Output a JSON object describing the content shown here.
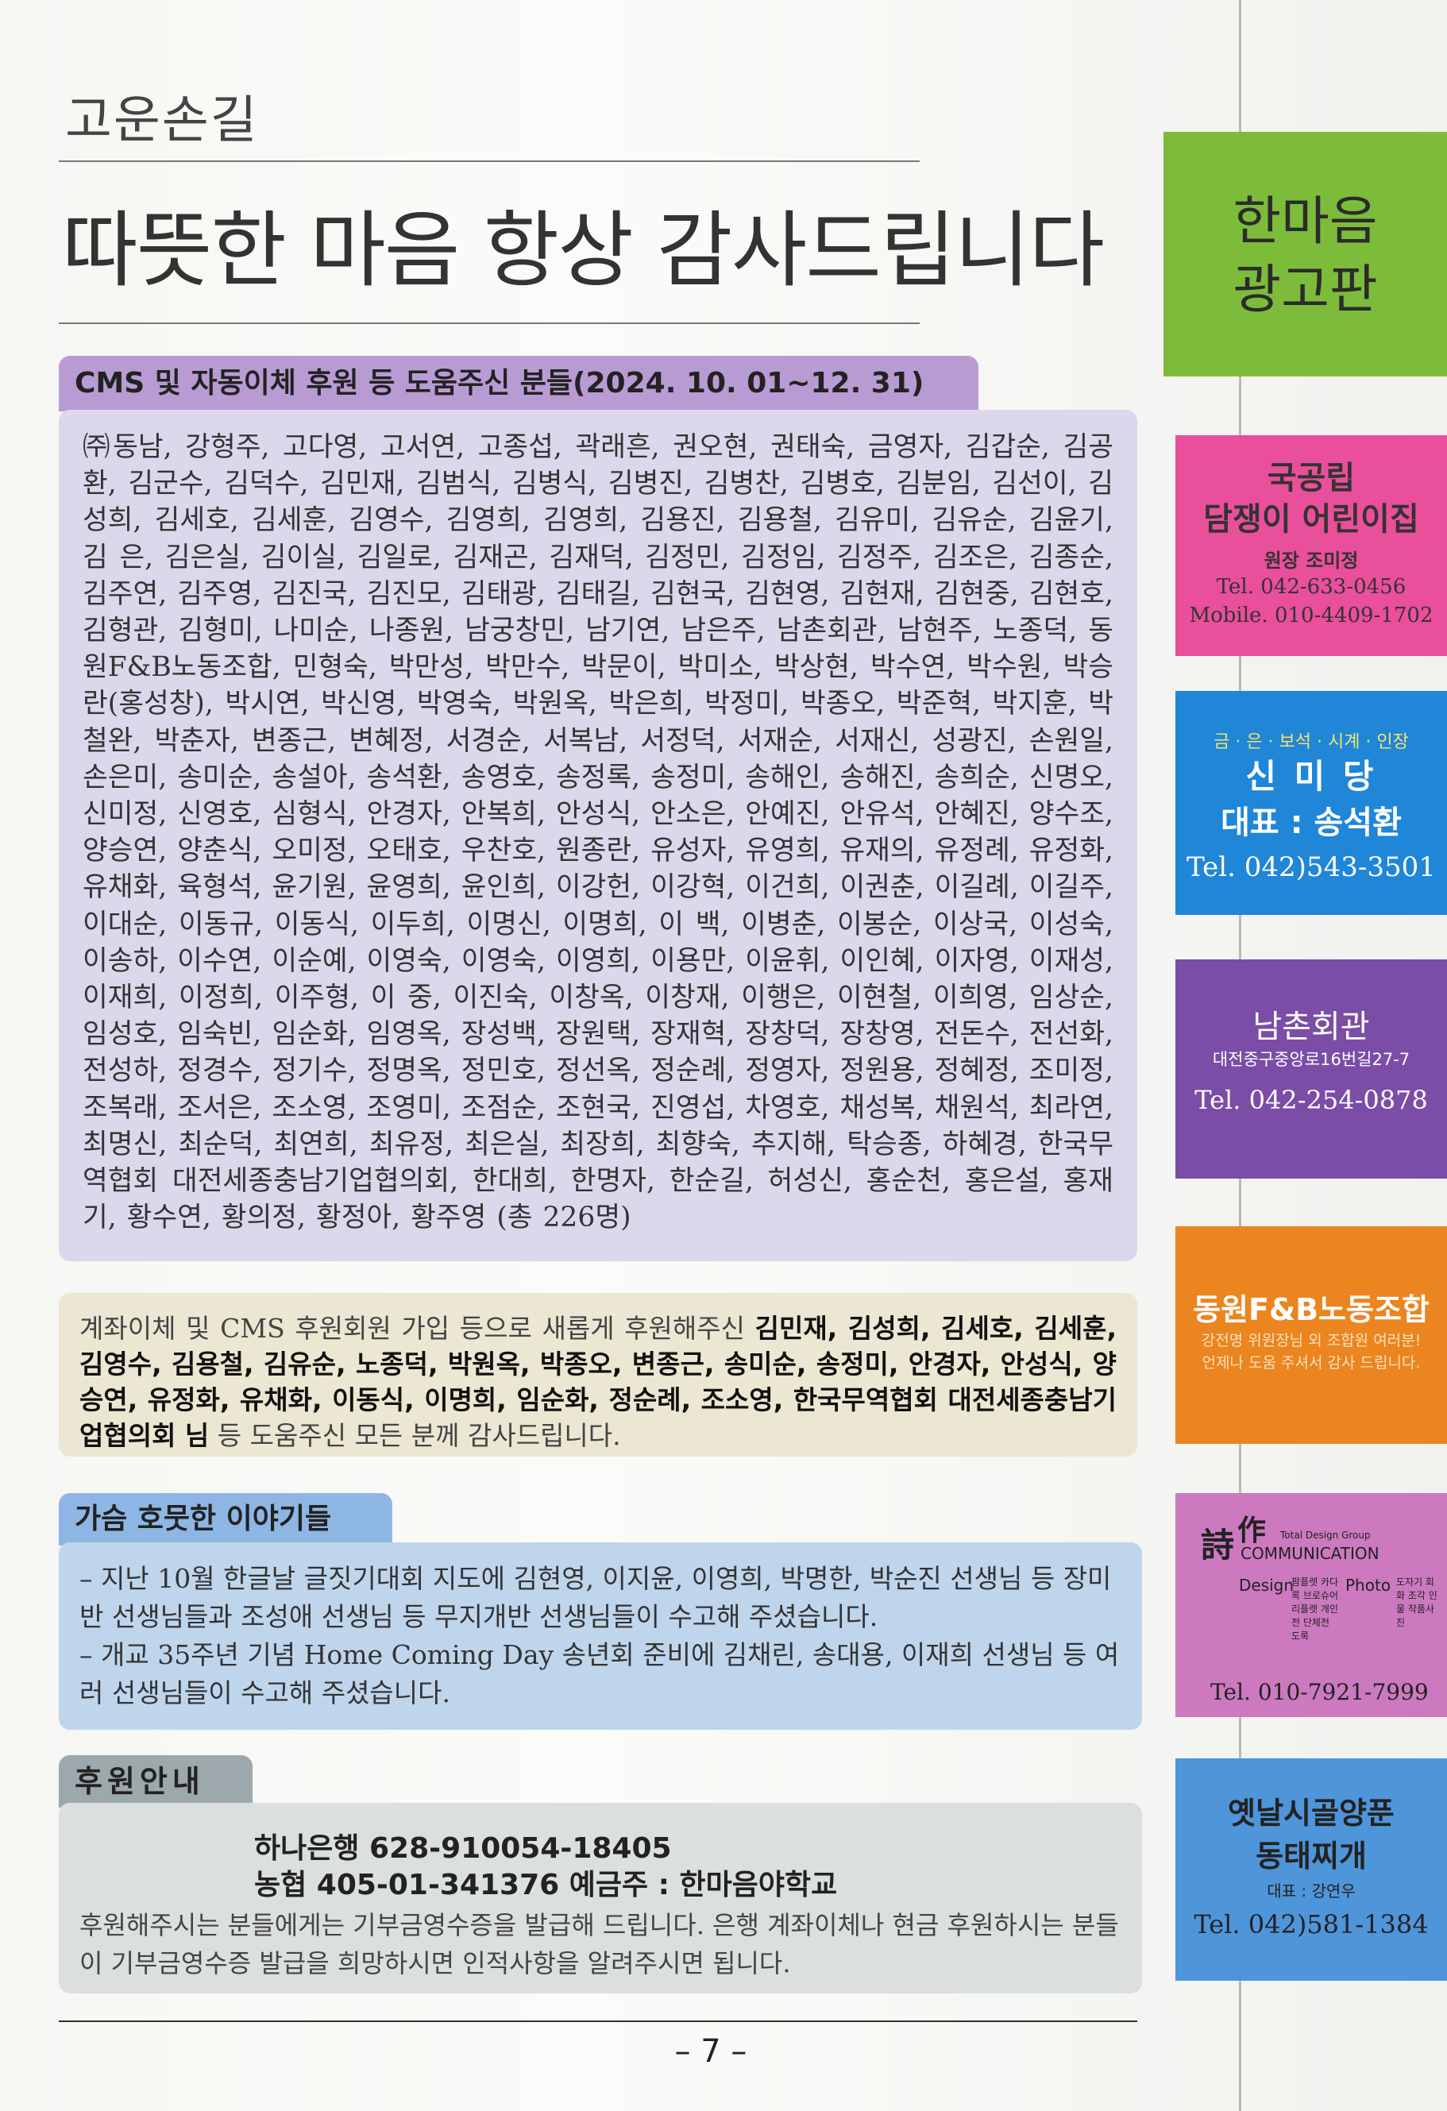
{
  "header": {
    "section_label": "고운손길",
    "title": "따뜻한 마음 항상 감사드립니다"
  },
  "cms": {
    "heading": "CMS 및 자동이체 후원 등 도움주신 분들(2024. 10. 01~12. 31)",
    "names": "㈜동남, 강형주, 고다영, 고서연, 고종섭, 곽래흔, 권오현, 권태숙, 금영자, 김갑순, 김공환, 김군수, 김덕수, 김민재, 김범식, 김병식, 김병진, 김병찬, 김병호, 김분임, 김선이, 김성희, 김세호, 김세훈, 김영수, 김영희, 김영희, 김용진, 김용철, 김유미, 김유순, 김윤기, 김 은, 김은실, 김이실, 김일로, 김재곤, 김재덕, 김정민, 김정임, 김정주, 김조은, 김종순, 김주연, 김주영, 김진국, 김진모, 김태광, 김태길, 김현국, 김현영, 김현재, 김현중, 김현호, 김형관, 김형미, 나미순, 나종원, 남궁창민, 남기연, 남은주, 남촌회관, 남현주, 노종덕, 동원F&B노동조합, 민형숙, 박만성, 박만수, 박문이, 박미소, 박상현, 박수연, 박수원, 박승란(홍성창), 박시연, 박신영, 박영숙, 박원옥, 박은희, 박정미, 박종오, 박준혁, 박지훈, 박철완, 박춘자, 변종근, 변혜정, 서경순, 서복남, 서정덕, 서재순, 서재신, 성광진, 손원일, 손은미, 송미순, 송설아, 송석환, 송영호, 송정록, 송정미, 송해인, 송해진, 송희순, 신명오, 신미정, 신영호, 심형식, 안경자, 안복희, 안성식, 안소은, 안예진, 안유석, 안혜진, 양수조, 양승연, 양춘식, 오미정, 오태호, 우찬호, 원종란, 유성자, 유영희, 유재의, 유정례, 유정화, 유채화, 육형석, 윤기원, 윤영희, 윤인희, 이강헌, 이강혁, 이건희, 이권춘, 이길례, 이길주, 이대순, 이동규, 이동식, 이두희, 이명신, 이명희, 이 백, 이병춘, 이봉순, 이상국, 이성숙, 이송하, 이수연, 이순예, 이영숙, 이영숙, 이영희, 이용만, 이윤휘, 이인혜, 이자영, 이재성, 이재희, 이정희, 이주형, 이 중, 이진숙, 이창옥, 이창재, 이행은, 이현철, 이희영, 임상순, 임성호, 임숙빈, 임순화, 임영옥, 장성백, 장원택, 장재혁, 장창덕, 장창영, 전돈수, 전선화, 전성하, 정경수, 정기수, 정명옥, 정민호, 정선옥, 정순례, 정영자, 정원용, 정혜정, 조미정, 조복래, 조서은, 조소영, 조영미, 조점순, 조현국, 진영섭, 차영호, 채성복, 채원석, 최라연, 최명신, 최순덕, 최연희, 최유정, 최은실, 최장희, 최향숙, 추지해, 탁승종, 하혜경, 한국무역협회 대전세종충남기업협의회, 한대희, 한명자, 한순길, 허성신, 홍순천, 홍은설, 홍재기, 황수연, 황의정, 황정아, 황주영 (총 226명)"
  },
  "new_donors": {
    "intro": "계좌이체 및 CMS 후원회원 가입 등으로 새롭게 후원해주신 ",
    "names": "김민재, 김성희, 김세호, 김세훈, 김영수, 김용철, 김유순, 노종덕, 박원옥, 박종오, 변종근, 송미순, 송정미, 안경자, 안성식, 양승연, 유정화, 유채화, 이동식, 이명희, 임순화, 정순례, 조소영, 한국무역협회 대전세종충남기업협의회 님",
    "outro": " 등 도움주신 모든 분께 감사드립니다."
  },
  "stories": {
    "heading": "가슴 호뭇한 이야기들",
    "items": [
      "– 지난 10월 한글날 글짓기대회 지도에 김현영, 이지윤, 이영희, 박명한, 박순진 선생님 등 장미반 선생님들과 조성애 선생님 등 무지개반 선생님들이 수고해 주셨습니다.",
      "– 개교 35주년 기념 Home Coming Day 송년회 준비에 김채린, 송대용, 이재희 선생님 등 여러 선생님들이 수고해 주셨습니다."
    ]
  },
  "support": {
    "heading": "후원안내",
    "bank1": "하나은행 628-910054-18405",
    "bank2": "농협 405-01-341376  예금주 : 한마음야학교",
    "note": "후원해주시는 분들에게는 기부금영수증을 발급해 드립니다. 은행 계좌이체나 현금 후원하시는 분들이 기부금영수증 발급을 희망하시면 인적사항을 알려주시면 됩니다."
  },
  "page_number": "– 7 –",
  "ads": {
    "header_line1": "한마음",
    "header_line2": "광고판",
    "daycare": {
      "line1": "국공립",
      "line2": "담쟁이 어린이집",
      "director": "원장 조미정",
      "tel": "Tel. 042-633-0456",
      "mobile": "Mobile. 010-4409-1702"
    },
    "shinmi": {
      "tagline": "금 · 은 · 보석 · 시계 · 인장",
      "name": "신 미 당",
      "rep": "대표 : 송석환",
      "tel": "Tel. 042)543-3501"
    },
    "namchon": {
      "name": "남촌회관",
      "address": "대전중구중앙로16번길27-7",
      "tel": "Tel. 042-254-0878"
    },
    "union": {
      "name": "동원F&B노동조합",
      "line1": "강전명 위원장님 외 조합원 여러분!",
      "line2": "언제나 도움 주셔서 감사 드립니다."
    },
    "design": {
      "logo1": "詩",
      "logo2": "作",
      "group": "Total Design Group",
      "brand": "COMMUNICATION",
      "col1_head": "Design",
      "col1": "팜플렛 카다록 브로슈어 리플렛 개인전 단체전 도록",
      "col2_head": "Photo",
      "col2": "도자기 회화 조각 인물 작품사진",
      "tel": "Tel. 010-7921-7999"
    },
    "eel": {
      "line1": "옛날시골양푼",
      "line2": "동태찌개",
      "rep": "대표 : 강연우",
      "tel": "Tel. 042)581-1384"
    },
    "colors": {
      "header": "#7cbc3a",
      "daycare": "#ea4f9b",
      "shinmi": "#1f86d8",
      "namchon": "#7b4da6",
      "union": "#ea8520",
      "design": "#cc79c0",
      "eel": "#4f95da"
    }
  }
}
